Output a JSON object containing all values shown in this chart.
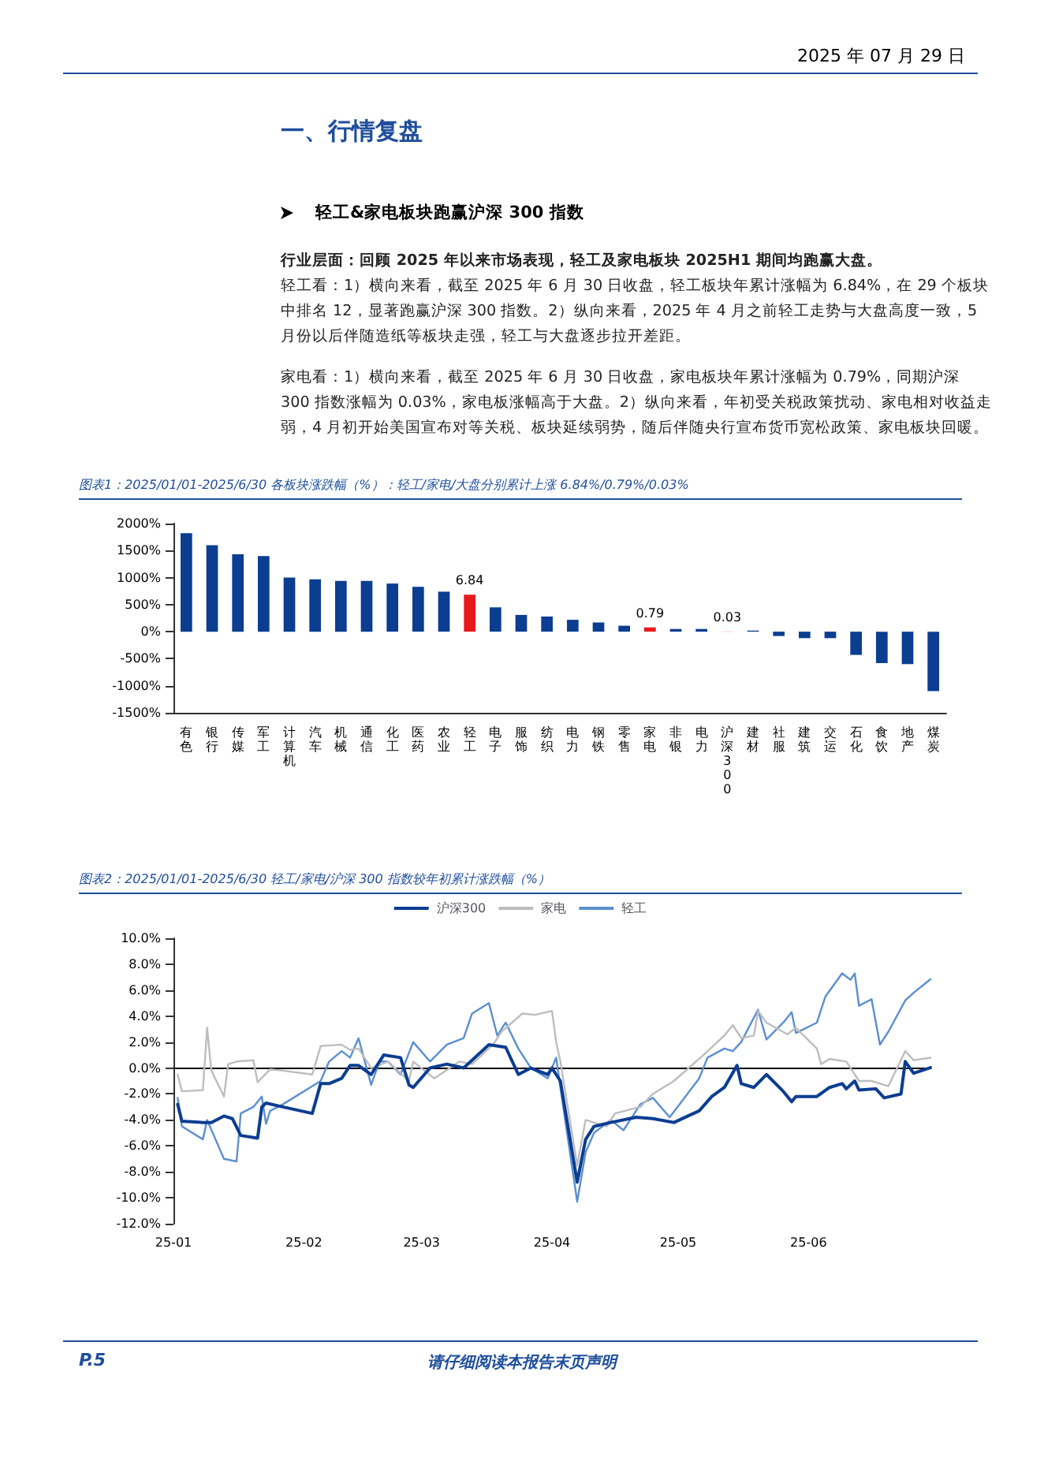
{
  "chart_data": [
    {
      "type": "bar",
      "title": "图表1：2025/01/01-2025/6/30 各板块涨跌幅（%）：轻工/家电/大盘分别累计上涨 6.84%/0.79%/0.03%",
      "annotations": [
        "2025 年 07 月 29 日",
        "一、行情复盘",
        "轻工&家电板块跑赢沪深 300 指数",
        "行业层面：回顾 2025 年以来市场表现，轻工及家电板块 2025H1 期间均跑赢大盘。",
        "轻工看：1）横向来看，截至 2025 年 6 月 30 日收盘，轻工板块年累计涨幅为 6.84%，在 29 个板块中排名 12，显著跑赢沪深 300 指数。2）纵向来看，2025 年 4 月之前轻工走势与大盘高度一致，5 月份以后伴随造纸等板块走强，轻工与大盘逐步拉开差距。",
        "家电看：1）横向来看，截至 2025 年 6 月 30 日收盘，家电板块年累计涨幅为 0.79%，同期沪深 300 指数涨幅为 0.03%，家电板涨幅高于大盘。2）纵向来看，年初受关税政策扰动、家电相对收益走弱，4 月初开始美国宣布对等关税、板块延续弱势，随后伴随央行宣布货币宽松政策、家电板块回暖。"
      ],
      "categories": [
        "有色",
        "银行",
        "传媒",
        "军工",
        "计算机",
        "汽车",
        "机械",
        "通信",
        "化工",
        "医药",
        "农业",
        "轻工",
        "电子",
        "服饰",
        "纺织",
        "电力",
        "钢铁",
        "零售",
        "家电",
        "非银",
        "电力",
        "沪深300",
        "建材",
        "社服",
        "建筑",
        "交运",
        "石化",
        "食饮",
        "地产",
        "煤炭"
      ],
      "values": [
        18.2,
        16.0,
        14.3,
        14.0,
        10.0,
        9.7,
        9.4,
        9.4,
        8.9,
        8.3,
        7.4,
        6.84,
        4.5,
        3.1,
        2.8,
        2.2,
        1.7,
        1.1,
        0.79,
        0.5,
        0.5,
        0.03,
        0.2,
        -0.8,
        -1.2,
        -1.2,
        -4.3,
        -5.8,
        -6.0,
        -11.0
      ],
      "colors": [
        "#0b3d91",
        "#0b3d91",
        "#0b3d91",
        "#0b3d91",
        "#0b3d91",
        "#0b3d91",
        "#0b3d91",
        "#0b3d91",
        "#0b3d91",
        "#0b3d91",
        "#0b3d91",
        "#e8191b",
        "#0b3d91",
        "#0b3d91",
        "#0b3d91",
        "#0b3d91",
        "#0b3d91",
        "#0b3d91",
        "#e8191b",
        "#0b3d91",
        "#0b3d91",
        "#e8191b",
        "#0b3d91",
        "#0b3d91",
        "#0b3d91",
        "#0b3d91",
        "#0b3d91",
        "#0b3d91",
        "#0b3d91",
        "#0b3d91"
      ],
      "value_labels": [
        null,
        null,
        null,
        null,
        null,
        null,
        null,
        null,
        null,
        null,
        null,
        "6.84",
        null,
        null,
        null,
        null,
        null,
        null,
        "0.79",
        null,
        null,
        "0.03",
        null,
        null,
        null,
        null,
        null,
        null,
        null,
        null
      ],
      "ylim": [
        -15,
        20
      ],
      "yticks": [
        {
          "value": -15,
          "label": "-1500%"
        },
        {
          "value": -10,
          "label": "-1000%"
        },
        {
          "value": -5,
          "label": "-500%"
        },
        {
          "value": 0,
          "label": "0%"
        },
        {
          "value": 5,
          "label": "500%"
        },
        {
          "value": 10,
          "label": "1000%"
        },
        {
          "value": 15,
          "label": "1500%"
        },
        {
          "value": 20,
          "label": "2000%"
        }
      ],
      "grid": false,
      "legend": false
    },
    {
      "type": "line",
      "title": "图表2：2025/01/01-2025/6/30 轻工/家电/沪深 300 指数较年初累计涨跌幅（%）",
      "annotations": [
        "P.5",
        "请仔细阅读本报告末页声明"
      ],
      "series": [
        {
          "name": "沪深300",
          "color": "#0b3d91",
          "x": [
            "2025-01-02",
            "2025-01-03",
            "2025-01-08",
            "2025-01-10",
            "2025-01-13",
            "2025-01-15",
            "2025-01-17",
            "2025-01-21",
            "2025-01-22",
            "2025-01-23",
            "2025-01-27",
            "2025-02-03",
            "2025-02-05",
            "2025-02-07",
            "2025-02-10",
            "2025-02-12",
            "2025-02-14",
            "2025-02-17",
            "2025-02-20",
            "2025-02-24",
            "2025-02-26",
            "2025-02-27",
            "2025-03-03",
            "2025-03-07",
            "2025-03-11",
            "2025-03-17",
            "2025-03-21",
            "2025-03-24",
            "2025-03-27",
            "2025-03-31",
            "2025-04-01",
            "2025-04-03",
            "2025-04-07",
            "2025-04-09",
            "2025-04-11",
            "2025-04-15",
            "2025-04-21",
            "2025-04-25",
            "2025-04-30",
            "2025-05-06",
            "2025-05-09",
            "2025-05-12",
            "2025-05-15",
            "2025-05-16",
            "2025-05-19",
            "2025-05-22",
            "2025-05-26",
            "2025-05-28",
            "2025-05-29",
            "2025-06-03",
            "2025-06-06",
            "2025-06-09",
            "2025-06-10",
            "2025-06-12",
            "2025-06-13",
            "2025-06-17",
            "2025-06-19",
            "2025-06-23",
            "2025-06-24",
            "2025-06-26",
            "2025-06-30"
          ],
          "values": [
            -2.8,
            -4.1,
            -4.2,
            -4.2,
            -3.7,
            -3.9,
            -5.2,
            -5.4,
            -3.0,
            -2.7,
            -3.0,
            -3.5,
            -1.2,
            -1.2,
            -0.8,
            0.2,
            0.2,
            -0.5,
            1.0,
            0.8,
            -1.3,
            -1.5,
            0.0,
            0.3,
            0.0,
            1.8,
            1.6,
            -0.5,
            0.0,
            -0.5,
            0.0,
            -1.0,
            -8.8,
            -5.5,
            -4.5,
            -4.2,
            -3.8,
            -3.9,
            -4.2,
            -3.3,
            -2.2,
            -1.5,
            0.2,
            -1.2,
            -1.5,
            -0.5,
            -1.8,
            -2.6,
            -2.2,
            -2.2,
            -1.5,
            -1.2,
            -1.6,
            -1.0,
            -1.7,
            -1.6,
            -2.3,
            -2.0,
            0.5,
            -0.4,
            0.03
          ]
        },
        {
          "name": "家电",
          "color": "#bdbdbd",
          "x": [
            "2025-01-02",
            "2025-01-03",
            "2025-01-08",
            "2025-01-09",
            "2025-01-10",
            "2025-01-13",
            "2025-01-14",
            "2025-01-16",
            "2025-01-20",
            "2025-01-21",
            "2025-01-24",
            "2025-01-27",
            "2025-02-03",
            "2025-02-05",
            "2025-02-10",
            "2025-02-12",
            "2025-02-14",
            "2025-02-17",
            "2025-02-21",
            "2025-02-26",
            "2025-02-27",
            "2025-03-04",
            "2025-03-10",
            "2025-03-13",
            "2025-03-18",
            "2025-03-20",
            "2025-03-25",
            "2025-03-28",
            "2025-04-01",
            "2025-04-02",
            "2025-04-03",
            "2025-04-07",
            "2025-04-09",
            "2025-04-14",
            "2025-04-16",
            "2025-04-22",
            "2025-04-25",
            "2025-04-30",
            "2025-05-07",
            "2025-05-12",
            "2025-05-14",
            "2025-05-16",
            "2025-05-19",
            "2025-05-20",
            "2025-05-22",
            "2025-05-27",
            "2025-05-29",
            "2025-06-03",
            "2025-06-04",
            "2025-06-06",
            "2025-06-10",
            "2025-06-13",
            "2025-06-16",
            "2025-06-20",
            "2025-06-24",
            "2025-06-26",
            "2025-06-30"
          ],
          "values": [
            -0.5,
            -1.8,
            -1.7,
            3.1,
            -0.2,
            -2.2,
            0.3,
            0.5,
            0.6,
            -1.1,
            -0.1,
            -0.2,
            -0.5,
            1.7,
            1.8,
            1.4,
            1.5,
            0.0,
            0.5,
            -1.0,
            0.5,
            -0.8,
            0.5,
            0.3,
            1.8,
            2.8,
            4.2,
            4.1,
            4.4,
            2.0,
            0.5,
            -7.5,
            -4.0,
            -4.5,
            -3.5,
            -3.0,
            -2.0,
            -1.0,
            1.0,
            2.5,
            3.3,
            2.3,
            2.5,
            4.4,
            3.5,
            2.6,
            3.1,
            1.5,
            0.3,
            0.7,
            0.5,
            -1.0,
            -1.0,
            -1.4,
            1.3,
            0.6,
            0.79
          ]
        },
        {
          "name": "轻工",
          "color": "#5b8fd0",
          "x": [
            "2025-01-02",
            "2025-01-03",
            "2025-01-08",
            "2025-01-09",
            "2025-01-13",
            "2025-01-16",
            "2025-01-17",
            "2025-01-20",
            "2025-01-22",
            "2025-01-23",
            "2025-01-24",
            "2025-01-27",
            "2025-02-05",
            "2025-02-07",
            "2025-02-10",
            "2025-02-12",
            "2025-02-14",
            "2025-02-17",
            "2025-02-19",
            "2025-02-21",
            "2025-02-24",
            "2025-02-27",
            "2025-03-03",
            "2025-03-07",
            "2025-03-11",
            "2025-03-13",
            "2025-03-17",
            "2025-03-19",
            "2025-03-21",
            "2025-03-24",
            "2025-03-27",
            "2025-03-31",
            "2025-04-02",
            "2025-04-03",
            "2025-04-07",
            "2025-04-09",
            "2025-04-11",
            "2025-04-15",
            "2025-04-18",
            "2025-04-22",
            "2025-04-25",
            "2025-04-29",
            "2025-05-06",
            "2025-05-08",
            "2025-05-12",
            "2025-05-14",
            "2025-05-16",
            "2025-05-20",
            "2025-05-22",
            "2025-05-26",
            "2025-05-28",
            "2025-05-29",
            "2025-06-03",
            "2025-06-05",
            "2025-06-09",
            "2025-06-11",
            "2025-06-12",
            "2025-06-13",
            "2025-06-16",
            "2025-06-18",
            "2025-06-20",
            "2025-06-24",
            "2025-06-26",
            "2025-06-30"
          ],
          "values": [
            -2.3,
            -4.5,
            -5.5,
            -4.0,
            -7.0,
            -7.2,
            -3.5,
            -3.0,
            -2.2,
            -4.3,
            -3.3,
            -2.8,
            -1.0,
            0.5,
            1.3,
            0.8,
            2.3,
            -1.3,
            0.5,
            0.5,
            -0.5,
            2.0,
            0.5,
            1.8,
            2.3,
            4.2,
            5.0,
            2.5,
            3.5,
            1.5,
            0.0,
            -0.8,
            0.8,
            -1.5,
            -10.3,
            -6.5,
            -5.0,
            -4.0,
            -4.8,
            -2.8,
            -2.3,
            -3.8,
            -0.8,
            0.8,
            1.5,
            1.3,
            2.0,
            4.5,
            2.2,
            3.5,
            4.3,
            2.7,
            3.5,
            5.5,
            7.3,
            6.8,
            7.3,
            4.8,
            5.3,
            1.8,
            2.8,
            5.2,
            5.8,
            6.84
          ]
        }
      ],
      "xlim": [
        "2025-01-01",
        "2025-06-30"
      ],
      "xticks": [
        {
          "value": "2025-01-01",
          "label": "25-01"
        },
        {
          "value": "2025-02-01",
          "label": "25-02"
        },
        {
          "value": "2025-03-01",
          "label": "25-03"
        },
        {
          "value": "2025-04-01",
          "label": "25-04"
        },
        {
          "value": "2025-05-01",
          "label": "25-05"
        },
        {
          "value": "2025-06-01",
          "label": "25-06"
        }
      ],
      "ylim": [
        -12,
        10
      ],
      "yticks": [
        {
          "value": -12,
          "label": "-12.0%"
        },
        {
          "value": -10,
          "label": "-10.0%"
        },
        {
          "value": -8,
          "label": "-8.0%"
        },
        {
          "value": -6,
          "label": "-6.0%"
        },
        {
          "value": -4,
          "label": "-4.0%"
        },
        {
          "value": -2,
          "label": "-2.0%"
        },
        {
          "value": 0,
          "label": "0.0%"
        },
        {
          "value": 2,
          "label": "2.0%"
        },
        {
          "value": 4,
          "label": "4.0%"
        },
        {
          "value": 6,
          "label": "6.0%"
        },
        {
          "value": 8,
          "label": "8.0%"
        },
        {
          "value": 10,
          "label": "10.0%"
        }
      ],
      "ref_lines": [
        {
          "axis": "y",
          "value": 0,
          "color": "#000000"
        }
      ],
      "grid": false,
      "legend": "top",
      "marker": "none",
      "line_style": "solid"
    }
  ]
}
